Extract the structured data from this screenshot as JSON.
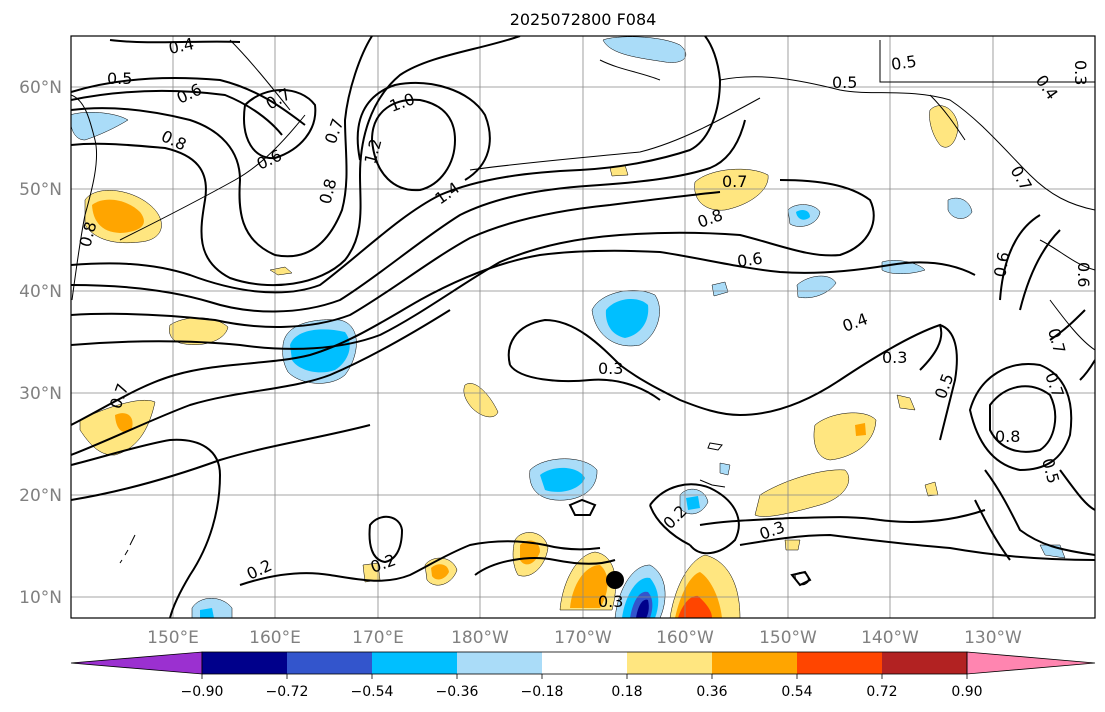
{
  "title": "2025072800 F084",
  "map": {
    "lon_labels": [
      "150°E",
      "160°E",
      "170°E",
      "180°W",
      "170°W",
      "160°W",
      "150°W",
      "140°W",
      "130°W"
    ],
    "lat_labels": [
      "60°N",
      "50°N",
      "40°N",
      "30°N",
      "20°N",
      "10°N"
    ],
    "grid": true,
    "marker": "black-dot"
  },
  "contour_labels": [
    {
      "text": "0.4"
    },
    {
      "text": "0.5"
    },
    {
      "text": "0.6"
    },
    {
      "text": "0.7"
    },
    {
      "text": "0.8"
    },
    {
      "text": "0.6"
    },
    {
      "text": "0.7"
    },
    {
      "text": "0.8"
    },
    {
      "text": "1.0"
    },
    {
      "text": "1.2"
    },
    {
      "text": "1.4"
    },
    {
      "text": "0.8"
    },
    {
      "text": "0.7"
    },
    {
      "text": "0.5"
    },
    {
      "text": "0.5"
    },
    {
      "text": "0.4"
    },
    {
      "text": "0.3"
    },
    {
      "text": "0.7"
    },
    {
      "text": "0.8"
    },
    {
      "text": "0.6"
    },
    {
      "text": "0.6"
    },
    {
      "text": "0.4"
    },
    {
      "text": "0.3"
    },
    {
      "text": "0.3"
    },
    {
      "text": "0.5"
    },
    {
      "text": "0.7"
    },
    {
      "text": "0.8"
    },
    {
      "text": "0.5"
    },
    {
      "text": "0.2"
    },
    {
      "text": "0.3"
    },
    {
      "text": "0.2"
    },
    {
      "text": "0.2"
    },
    {
      "text": "0.3"
    },
    {
      "text": "0.7"
    },
    {
      "text": "0.6"
    },
    {
      "text": "0.7"
    }
  ],
  "colorbar": {
    "ticks": [
      "−0.90",
      "−0.72",
      "−0.54",
      "−0.36",
      "−0.18",
      "0.18",
      "0.36",
      "0.54",
      "0.72",
      "0.90"
    ],
    "colors": [
      "#9b30d0",
      "#00008b",
      "#3355cc",
      "#00bfff",
      "#aadcf8",
      "#ffffff",
      "#ffe680",
      "#ffa500",
      "#ff4500",
      "#b22222",
      "#ff85b0"
    ]
  }
}
